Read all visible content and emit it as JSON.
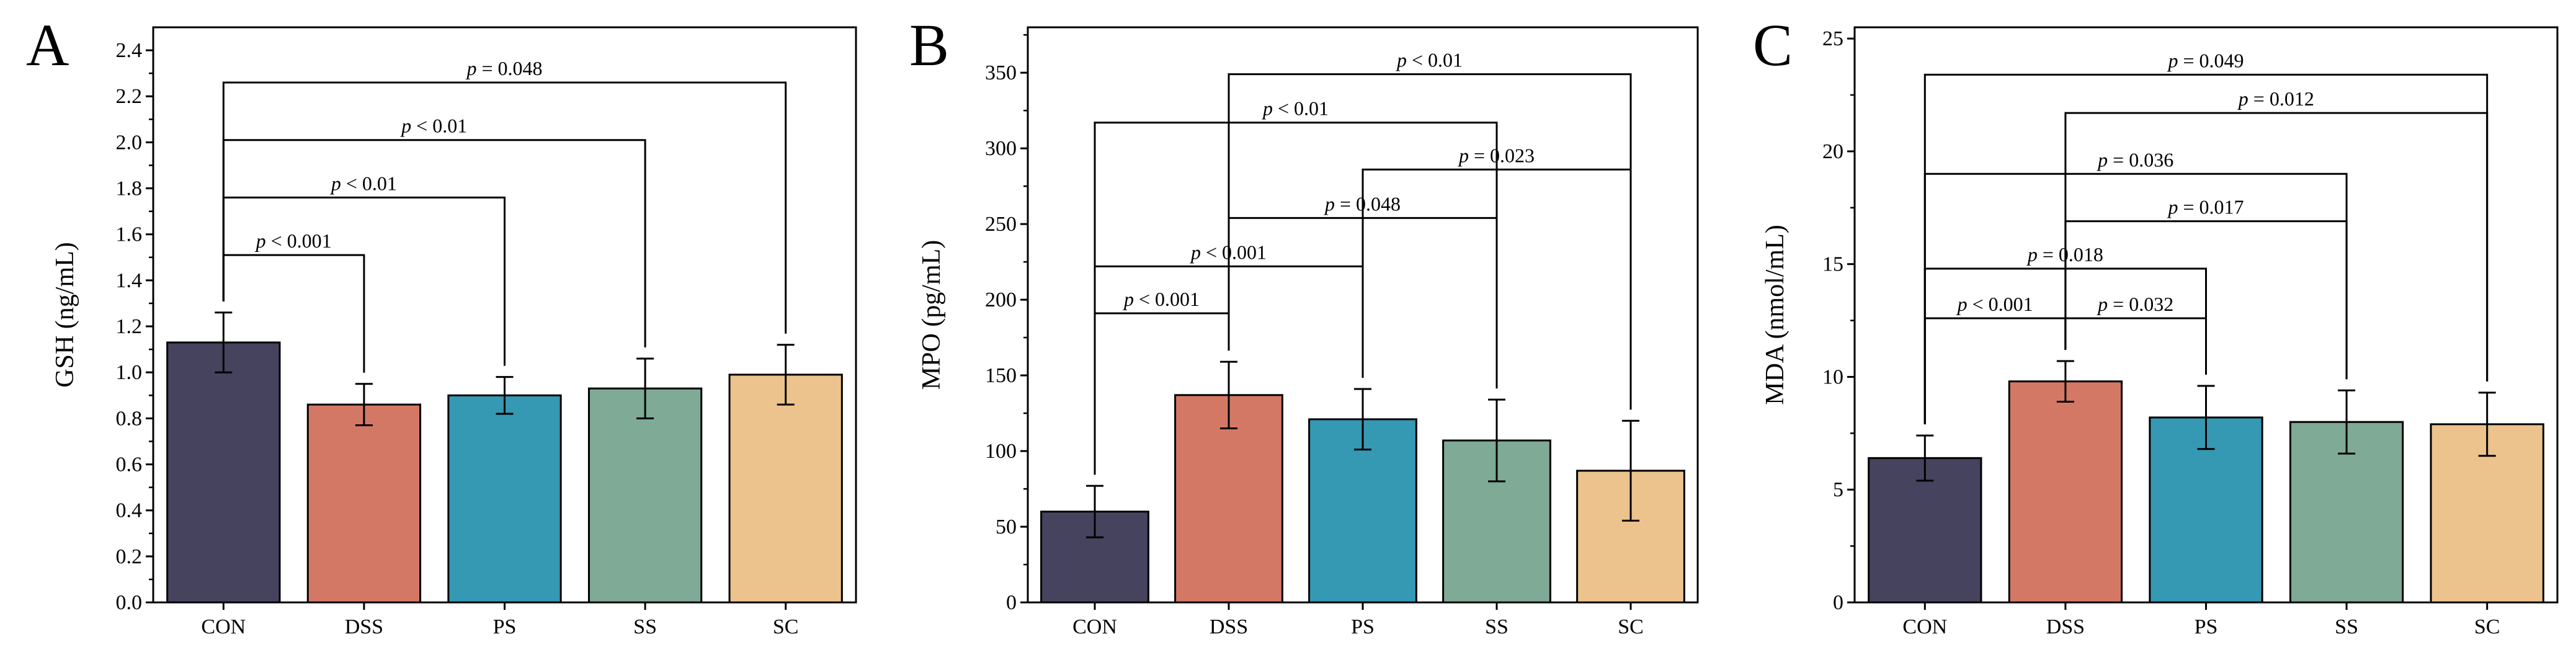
{
  "colors": {
    "CON": "#45435d",
    "DSS": "#d47866",
    "PS": "#3599b4",
    "SS": "#7eaa96",
    "SC": "#ecc38d"
  },
  "chart_data": [
    {
      "type": "bar",
      "panel": "A",
      "title": "",
      "ylabel": "GSH (ng/mL)",
      "xlabel": "",
      "ylim": [
        0,
        2.5
      ],
      "yticks": [
        "0.0",
        "0.2",
        "0.4",
        "0.6",
        "0.8",
        "1.0",
        "1.2",
        "1.4",
        "1.6",
        "1.8",
        "2.0",
        "2.2",
        "2.4"
      ],
      "tick_step": 0.2,
      "minor_step": 0.1,
      "categories": [
        "CON",
        "DSS",
        "PS",
        "SS",
        "SC"
      ],
      "values": [
        1.13,
        0.86,
        0.9,
        0.93,
        0.99
      ],
      "errors": [
        0.13,
        0.09,
        0.08,
        0.13,
        0.13
      ],
      "comparisons": [
        {
          "from": 0,
          "to": 1,
          "y": 1.51,
          "label": "p < 0.001"
        },
        {
          "from": 0,
          "to": 2,
          "y": 1.76,
          "label": "p < 0.01"
        },
        {
          "from": 0,
          "to": 3,
          "y": 2.01,
          "label": "p < 0.01"
        },
        {
          "from": 0,
          "to": 4,
          "y": 2.26,
          "label": "p = 0.048"
        }
      ]
    },
    {
      "type": "bar",
      "panel": "B",
      "title": "",
      "ylabel": "MPO (pg/mL)",
      "xlabel": "",
      "ylim": [
        0,
        380
      ],
      "yticks": [
        "0",
        "50",
        "100",
        "150",
        "200",
        "250",
        "300",
        "350"
      ],
      "tick_step": 50,
      "minor_step": 25,
      "categories": [
        "CON",
        "DSS",
        "PS",
        "SS",
        "SC"
      ],
      "values": [
        60,
        137,
        121,
        107,
        87
      ],
      "errors": [
        17,
        22,
        20,
        27,
        33
      ],
      "comparisons": [
        {
          "from": 0,
          "to": 1,
          "y": 191,
          "label": "p < 0.001"
        },
        {
          "from": 0,
          "to": 2,
          "y": 222,
          "label": "p < 0.001"
        },
        {
          "from": 1,
          "to": 3,
          "y": 254,
          "label": "p = 0.048"
        },
        {
          "from": 2,
          "to": 4,
          "y": 286,
          "label": "p = 0.023"
        },
        {
          "from": 0,
          "to": 3,
          "y": 317,
          "label": "p < 0.01"
        },
        {
          "from": 1,
          "to": 4,
          "y": 349,
          "label": "p < 0.01"
        }
      ]
    },
    {
      "type": "bar",
      "panel": "C",
      "title": "",
      "ylabel": "MDA (nmol/mL)",
      "xlabel": "",
      "ylim": [
        0,
        25.5
      ],
      "yticks": [
        "0",
        "5",
        "10",
        "15",
        "20",
        "25"
      ],
      "tick_step": 5,
      "minor_step": 2.5,
      "categories": [
        "CON",
        "DSS",
        "PS",
        "SS",
        "SC"
      ],
      "values": [
        6.4,
        9.8,
        8.2,
        8.0,
        7.9
      ],
      "errors": [
        1.0,
        0.9,
        1.4,
        1.4,
        1.4
      ],
      "comparisons": [
        {
          "from": 0,
          "to": 1,
          "y": 12.6,
          "label": "p < 0.001"
        },
        {
          "from": 1,
          "to": 2,
          "y": 12.6,
          "label": "p = 0.032"
        },
        {
          "from": 0,
          "to": 2,
          "y": 14.8,
          "label": "p = 0.018"
        },
        {
          "from": 1,
          "to": 3,
          "y": 16.9,
          "label": "p = 0.017"
        },
        {
          "from": 0,
          "to": 3,
          "y": 19.0,
          "label": "p = 0.036"
        },
        {
          "from": 1,
          "to": 4,
          "y": 21.7,
          "label": "p = 0.012"
        },
        {
          "from": 0,
          "to": 4,
          "y": 23.4,
          "label": "p = 0.049"
        }
      ]
    }
  ]
}
